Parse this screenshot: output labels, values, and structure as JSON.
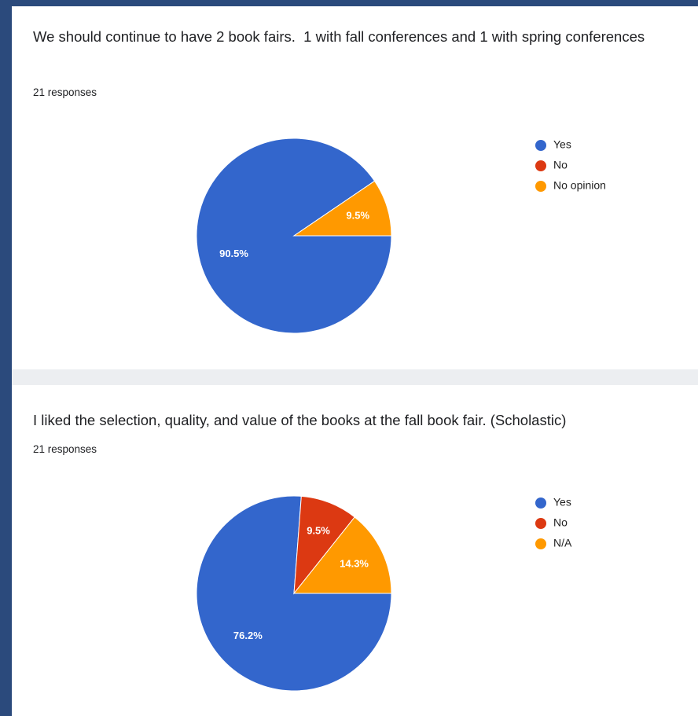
{
  "chart_data": [
    {
      "type": "pie",
      "title": "We should continue to have 2 book fairs.  1 with fall conferences and 1 with spring conferences",
      "subtitle": "21 responses",
      "categories": [
        "Yes",
        "No",
        "No opinion"
      ],
      "values": [
        90.5,
        0,
        9.5
      ],
      "value_labels": [
        "90.5%",
        null,
        "9.5%"
      ],
      "colors": [
        "#3366cc",
        "#dc3912",
        "#ff9900"
      ],
      "legend": "right"
    },
    {
      "type": "pie",
      "title": "I liked the selection, quality, and value of the books at the fall book fair. (Scholastic)",
      "subtitle": "21 responses",
      "categories": [
        "Yes",
        "No",
        "N/A"
      ],
      "values": [
        76.2,
        9.5,
        14.3
      ],
      "value_labels": [
        "76.2%",
        "9.5%",
        "14.3%"
      ],
      "colors": [
        "#3366cc",
        "#dc3912",
        "#ff9900"
      ],
      "legend": "right"
    }
  ]
}
